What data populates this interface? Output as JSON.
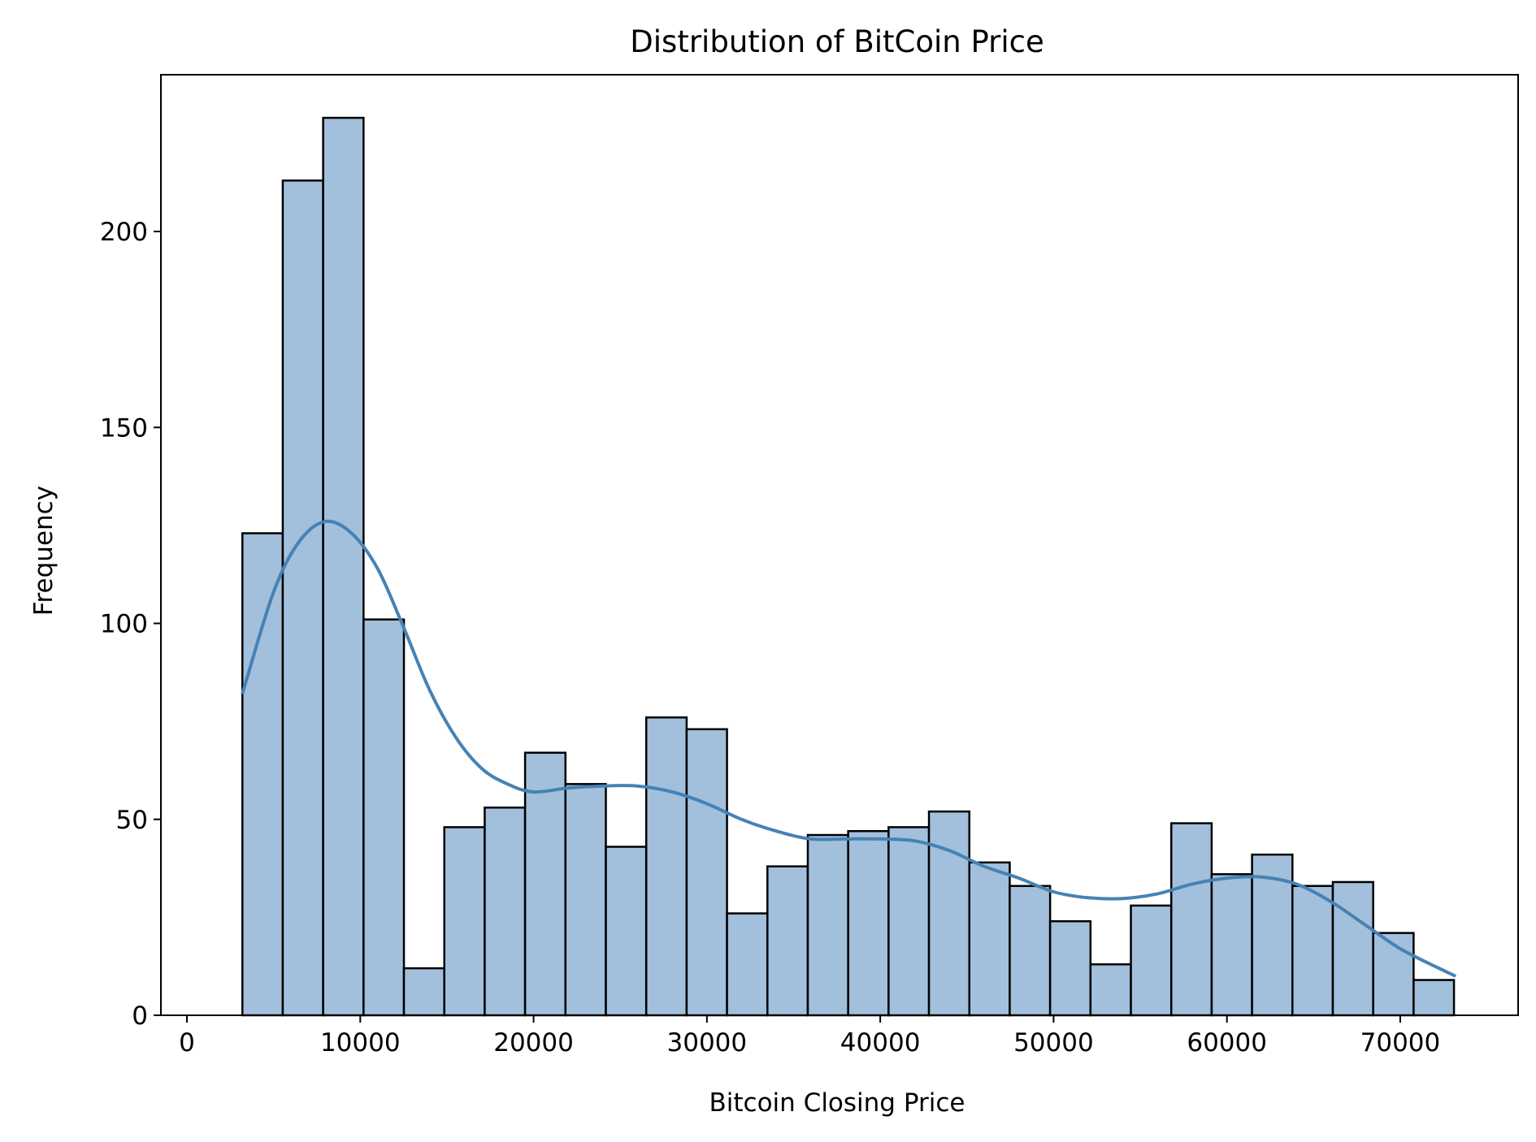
{
  "chart_data": {
    "type": "bar",
    "subtype": "histogram-with-kde",
    "title": "Distribution of BitCoin Price",
    "xlabel": "Bitcoin Closing Price",
    "ylabel": "Frequency",
    "xlim": [
      -1500,
      76800
    ],
    "ylim": [
      0,
      240
    ],
    "xticks": [
      0,
      10000,
      20000,
      30000,
      40000,
      50000,
      60000,
      70000
    ],
    "xtick_labels": [
      "0",
      "10000",
      "20000",
      "30000",
      "40000",
      "50000",
      "60000",
      "70000"
    ],
    "yticks": [
      0,
      50,
      100,
      150,
      200
    ],
    "ytick_labels": [
      "0",
      "50",
      "100",
      "150",
      "200"
    ],
    "bin_start": 3200,
    "bin_width": 2330,
    "values": [
      123,
      213,
      229,
      101,
      12,
      48,
      53,
      67,
      59,
      43,
      76,
      73,
      26,
      38,
      46,
      47,
      48,
      52,
      39,
      33,
      24,
      13,
      28,
      49,
      36,
      41,
      33,
      34,
      21,
      9
    ],
    "kde": {
      "x": [
        3200,
        5000,
        6500,
        8000,
        9500,
        11000,
        12500,
        14000,
        15500,
        17000,
        18500,
        20000,
        22000,
        24000,
        26000,
        28000,
        30000,
        32000,
        34000,
        36000,
        38000,
        40000,
        42000,
        44000,
        46000,
        48000,
        50000,
        52000,
        54000,
        56000,
        58000,
        60000,
        62000,
        64000,
        66000,
        68000,
        70000,
        72000,
        73200
      ],
      "y": [
        82,
        108,
        121,
        126,
        123,
        114,
        99,
        83,
        71,
        63,
        59,
        57,
        58,
        58.5,
        58.5,
        57,
        54,
        50,
        47,
        45,
        45,
        45,
        44.5,
        42,
        38,
        35,
        31.5,
        30,
        29.8,
        31,
        33.5,
        35,
        35.3,
        33.5,
        29,
        23,
        17,
        12.5,
        10
      ]
    },
    "colors": {
      "bar_fill": "#a2bfdb",
      "bar_edge": "#000000",
      "kde_line": "#4682b4"
    },
    "grid": false,
    "legend": "none"
  }
}
